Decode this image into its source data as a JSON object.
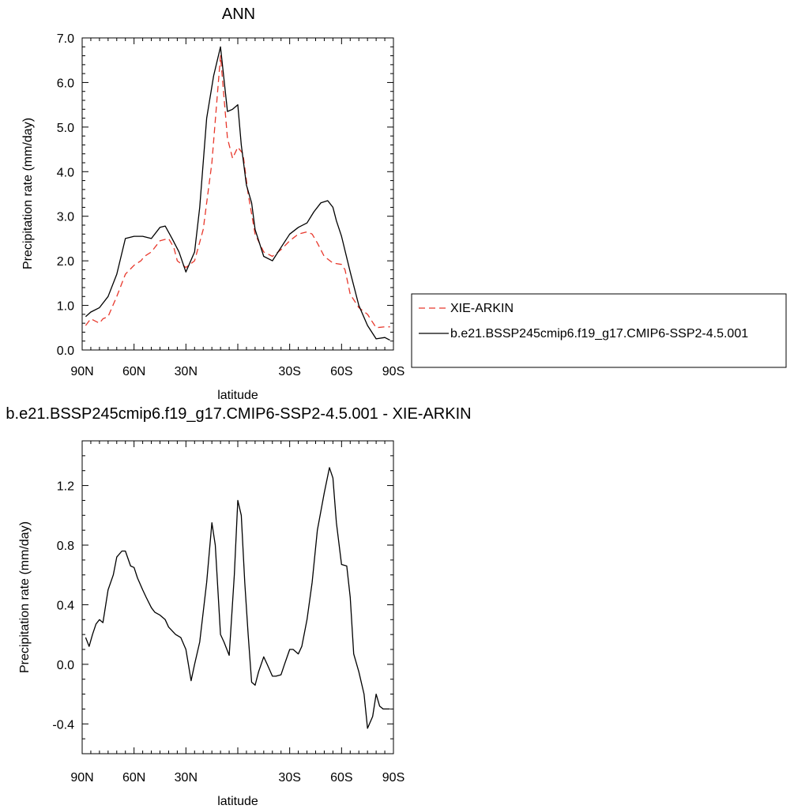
{
  "colors": {
    "xie": "#e8382c",
    "model": "#000000"
  },
  "chart_data": [
    {
      "type": "line",
      "title": "ANN",
      "xlabel": "latitude",
      "ylabel": "Precipitation rate (mm/day)",
      "xlim": [
        90,
        -90
      ],
      "ylim": [
        0,
        7
      ],
      "x_ticks": [
        {
          "v": 90,
          "label": "90N"
        },
        {
          "v": 60,
          "label": "60N"
        },
        {
          "v": 30,
          "label": "30N"
        },
        {
          "v": 0,
          "label": ""
        },
        {
          "v": -30,
          "label": "30S"
        },
        {
          "v": -60,
          "label": "60S"
        },
        {
          "v": -90,
          "label": "90S"
        }
      ],
      "y_ticks": [
        {
          "v": 0,
          "label": "0.0"
        },
        {
          "v": 1,
          "label": "1.0"
        },
        {
          "v": 2,
          "label": "2.0"
        },
        {
          "v": 3,
          "label": "3.0"
        },
        {
          "v": 4,
          "label": "4.0"
        },
        {
          "v": 5,
          "label": "5.0"
        },
        {
          "v": 6,
          "label": "6.0"
        },
        {
          "v": 7,
          "label": "7.0"
        }
      ],
      "y_minor": 0.2,
      "legend": "right",
      "series": [
        {
          "name": "XIE-ARKIN",
          "style": "dashed",
          "color": "#e8382c",
          "x": [
            88,
            85,
            80,
            78,
            75,
            70,
            65,
            60,
            56,
            54,
            50,
            45,
            40,
            37,
            35,
            30,
            25,
            20,
            15,
            10,
            6,
            3,
            0,
            -3,
            -6,
            -10,
            -15,
            -20,
            -25,
            -30,
            -35,
            -40,
            -43,
            -46,
            -50,
            -55,
            -60,
            -62,
            -65,
            -70,
            -75,
            -80,
            -85,
            -88
          ],
          "y": [
            0.55,
            0.7,
            0.6,
            0.7,
            0.75,
            1.2,
            1.7,
            1.9,
            2.0,
            2.1,
            2.2,
            2.45,
            2.5,
            2.3,
            2.0,
            1.85,
            2.0,
            2.7,
            4.2,
            6.6,
            4.75,
            4.3,
            4.55,
            4.4,
            3.5,
            2.6,
            2.2,
            2.1,
            2.25,
            2.45,
            2.6,
            2.65,
            2.6,
            2.4,
            2.1,
            1.95,
            1.92,
            1.8,
            1.25,
            0.95,
            0.8,
            0.5,
            0.52,
            0.52
          ]
        },
        {
          "name": "b.e21.BSSP245cmip6.f19_g17.CMIP6-SSP2-4.5.001",
          "style": "solid",
          "color": "#000000",
          "x": [
            88,
            85,
            80,
            75,
            70,
            65,
            60,
            55,
            50,
            45,
            42,
            38,
            34,
            30,
            25,
            22,
            18,
            14,
            10,
            6,
            3,
            0,
            -2,
            -5,
            -8,
            -10,
            -15,
            -20,
            -25,
            -30,
            -35,
            -40,
            -44,
            -48,
            -52,
            -55,
            -57,
            -60,
            -65,
            -70,
            -75,
            -80,
            -85,
            -88
          ],
          "y": [
            0.75,
            0.85,
            0.95,
            1.2,
            1.7,
            2.5,
            2.55,
            2.55,
            2.5,
            2.75,
            2.78,
            2.5,
            2.2,
            1.75,
            2.2,
            3.2,
            5.2,
            6.15,
            6.8,
            5.35,
            5.4,
            5.5,
            4.6,
            3.7,
            3.3,
            2.7,
            2.1,
            2.0,
            2.3,
            2.6,
            2.75,
            2.85,
            3.1,
            3.3,
            3.35,
            3.2,
            2.9,
            2.55,
            1.75,
            1.0,
            0.55,
            0.25,
            0.28,
            0.22
          ]
        }
      ]
    },
    {
      "type": "line",
      "title": "b.e21.BSSP245cmip6.f19_g17.CMIP6-SSP2-4.5.001 - XIE-ARKIN",
      "xlabel": "latitude",
      "ylabel": "Precipitation rate (mm/day)",
      "xlim": [
        90,
        -90
      ],
      "ylim": [
        -0.6,
        1.5
      ],
      "x_ticks": [
        {
          "v": 90,
          "label": "90N"
        },
        {
          "v": 60,
          "label": "60N"
        },
        {
          "v": 30,
          "label": "30N"
        },
        {
          "v": 0,
          "label": ""
        },
        {
          "v": -30,
          "label": "30S"
        },
        {
          "v": -60,
          "label": "60S"
        },
        {
          "v": -90,
          "label": "90S"
        }
      ],
      "y_ticks": [
        {
          "v": -0.4,
          "label": "-0.4"
        },
        {
          "v": 0.0,
          "label": "0.0"
        },
        {
          "v": 0.4,
          "label": "0.4"
        },
        {
          "v": 0.8,
          "label": "0.8"
        },
        {
          "v": 1.2,
          "label": "1.2"
        }
      ],
      "y_minor": 0.1,
      "series": [
        {
          "name": "",
          "style": "solid",
          "color": "#000000",
          "x": [
            88,
            86,
            84,
            82,
            80,
            78,
            75,
            72,
            70,
            67,
            65,
            62,
            60,
            58,
            55,
            53,
            50,
            48,
            45,
            42,
            40,
            36,
            33,
            30,
            27,
            25,
            22,
            18,
            15,
            13,
            10,
            8,
            5,
            2,
            0,
            -2,
            -4,
            -6,
            -8,
            -10,
            -12,
            -15,
            -17,
            -20,
            -22,
            -25,
            -27,
            -30,
            -32,
            -35,
            -37,
            -40,
            -43,
            -46,
            -50,
            -53,
            -55,
            -57,
            -60,
            -63,
            -65,
            -67,
            -70,
            -73,
            -75,
            -78,
            -80,
            -82,
            -84,
            -86,
            -88
          ],
          "y": [
            0.18,
            0.12,
            0.2,
            0.27,
            0.3,
            0.28,
            0.5,
            0.6,
            0.72,
            0.76,
            0.76,
            0.66,
            0.65,
            0.58,
            0.5,
            0.45,
            0.38,
            0.35,
            0.33,
            0.3,
            0.25,
            0.2,
            0.18,
            0.1,
            -0.11,
            0.0,
            0.15,
            0.55,
            0.95,
            0.8,
            0.2,
            0.15,
            0.06,
            0.6,
            1.1,
            1.0,
            0.55,
            0.2,
            -0.12,
            -0.14,
            -0.05,
            0.05,
            0.0,
            -0.08,
            -0.08,
            -0.07,
            0.0,
            0.1,
            0.1,
            0.07,
            0.12,
            0.3,
            0.55,
            0.9,
            1.15,
            1.32,
            1.25,
            0.95,
            0.67,
            0.66,
            0.45,
            0.07,
            -0.05,
            -0.2,
            -0.43,
            -0.35,
            -0.2,
            -0.28,
            -0.3,
            -0.3,
            -0.3
          ]
        }
      ]
    }
  ],
  "legend": {
    "items": [
      {
        "label": "XIE-ARKIN",
        "style": "dashed",
        "color": "#e8382c"
      },
      {
        "label": "b.e21.BSSP245cmip6.f19_g17.CMIP6-SSP2-4.5.001",
        "style": "solid",
        "color": "#000000"
      }
    ]
  }
}
